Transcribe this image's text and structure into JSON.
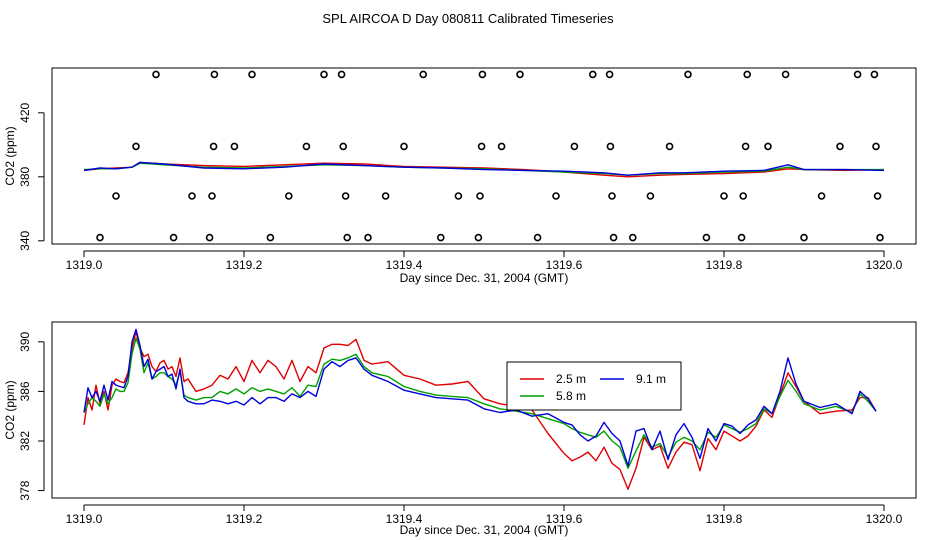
{
  "title": "SPL AIRCOA D  Day 080811  Calibrated Timeseries",
  "chart_data": [
    {
      "type": "line",
      "title": "",
      "xlabel": "Day since Dec. 31, 2004 (GMT)",
      "ylabel": "CO2 (ppm)",
      "xlim": [
        1319.0,
        1320.0
      ],
      "ylim": [
        338,
        448
      ],
      "xticks": [
        1319.0,
        1319.2,
        1319.4,
        1319.6,
        1319.8,
        1320.0
      ],
      "xtick_labels": [
        "1319.0",
        "1319.2",
        "1319.4",
        "1319.6",
        "1319.8",
        "1320.0"
      ],
      "yticks": [
        340,
        380,
        420
      ],
      "ytick_labels": [
        "340",
        "380",
        "420"
      ],
      "series": [
        {
          "name": "2.5 m",
          "color": "#e00000",
          "x": [
            1319.0,
            1319.02,
            1319.04,
            1319.06,
            1319.07,
            1319.1,
            1319.15,
            1319.2,
            1319.25,
            1319.3,
            1319.35,
            1319.4,
            1319.45,
            1319.5,
            1319.55,
            1319.6,
            1319.65,
            1319.68,
            1319.72,
            1319.75,
            1319.8,
            1319.85,
            1319.88,
            1319.9,
            1319.95,
            1320.0
          ],
          "y": [
            384,
            385,
            385.5,
            386,
            389,
            388,
            387,
            386.5,
            387.5,
            388.5,
            388,
            386.5,
            386,
            385.5,
            384.5,
            383,
            381,
            380,
            381,
            381.5,
            382,
            383,
            385,
            384.5,
            384,
            384.5
          ]
        },
        {
          "name": "5.8 m",
          "color": "#00a000",
          "x": [
            1319.0,
            1319.02,
            1319.04,
            1319.06,
            1319.07,
            1319.1,
            1319.15,
            1319.2,
            1319.25,
            1319.3,
            1319.35,
            1319.4,
            1319.45,
            1319.5,
            1319.55,
            1319.6,
            1319.65,
            1319.68,
            1319.72,
            1319.75,
            1319.8,
            1319.85,
            1319.88,
            1319.9,
            1319.95,
            1320.0
          ],
          "y": [
            384.5,
            385,
            385,
            386,
            388.5,
            387.5,
            386,
            385.5,
            386.5,
            387.5,
            387,
            386,
            385.5,
            385,
            384,
            383,
            382,
            381,
            382,
            382,
            383,
            383.5,
            386,
            384.5,
            384.5,
            384.5
          ]
        },
        {
          "name": "9.1 m",
          "color": "#0000dd",
          "x": [
            1319.0,
            1319.02,
            1319.04,
            1319.06,
            1319.07,
            1319.1,
            1319.15,
            1319.2,
            1319.25,
            1319.3,
            1319.35,
            1319.4,
            1319.45,
            1319.5,
            1319.55,
            1319.6,
            1319.65,
            1319.68,
            1319.72,
            1319.75,
            1319.8,
            1319.85,
            1319.88,
            1319.9,
            1319.95,
            1320.0
          ],
          "y": [
            384,
            385.5,
            385,
            386,
            389,
            388,
            385.5,
            385,
            386,
            388,
            387,
            386,
            385.5,
            384.5,
            384,
            383.5,
            382.5,
            381,
            382.5,
            382.5,
            383.5,
            384,
            387.5,
            384.5,
            384.5,
            384
          ]
        }
      ],
      "markers": [
        {
          "label": "o",
          "x": [
            1319.02,
            1319.04,
            1319.065,
            1319.09,
            1319.112,
            1319.135,
            1319.157,
            1319.16,
            1319.162,
            1319.163,
            1319.188,
            1319.21,
            1319.233,
            1319.256,
            1319.278,
            1319.3,
            1319.322,
            1319.324,
            1319.327,
            1319.329,
            1319.355,
            1319.377,
            1319.4,
            1319.424,
            1319.446,
            1319.468,
            1319.493,
            1319.495,
            1319.497,
            1319.498,
            1319.522,
            1319.545,
            1319.567,
            1319.59,
            1319.613,
            1319.636,
            1319.657,
            1319.658,
            1319.66,
            1319.662,
            1319.686,
            1319.708,
            1319.732,
            1319.755,
            1319.778,
            1319.8,
            1319.822,
            1319.824,
            1319.827,
            1319.829,
            1319.855,
            1319.877,
            1319.9,
            1319.922,
            1319.945,
            1319.967,
            1319.988,
            1319.99,
            1319.992,
            1319.995
          ],
          "y": [
            342,
            368,
            399,
            444,
            342,
            368,
            342,
            368,
            399,
            444,
            399,
            444,
            342,
            368,
            399,
            444,
            444,
            399,
            368,
            342,
            342,
            368,
            399,
            444,
            342,
            368,
            342,
            368,
            399,
            444,
            399,
            444,
            342,
            368,
            399,
            444,
            444,
            399,
            368,
            342,
            342,
            368,
            399,
            444,
            342,
            368,
            342,
            368,
            399,
            444,
            399,
            444,
            342,
            368,
            399,
            444,
            444,
            399,
            368,
            342
          ]
        }
      ]
    },
    {
      "type": "line",
      "title": "",
      "xlabel": "Day since Dec. 31, 2004 (GMT)",
      "ylabel": "CO2 (ppm)",
      "xlim": [
        1319.0,
        1320.0
      ],
      "ylim": [
        377.4,
        391.6
      ],
      "xticks": [
        1319.0,
        1319.2,
        1319.4,
        1319.6,
        1319.8,
        1320.0
      ],
      "xtick_labels": [
        "1319.0",
        "1319.2",
        "1319.4",
        "1319.6",
        "1319.8",
        "1320.0"
      ],
      "yticks": [
        378,
        382,
        386,
        390
      ],
      "ytick_labels": [
        "378",
        "382",
        "386",
        "390"
      ],
      "legend": {
        "position": "center-right",
        "entries": [
          {
            "name": "2.5 m",
            "color": "#e00000"
          },
          {
            "name": "9.1 m",
            "color": "#0000dd"
          },
          {
            "name": "5.8 m",
            "color": "#00a000"
          }
        ]
      },
      "series": [
        {
          "name": "2.5 m",
          "color": "#e00000",
          "x": [
            1319.0,
            1319.005,
            1319.01,
            1319.015,
            1319.02,
            1319.025,
            1319.03,
            1319.035,
            1319.04,
            1319.045,
            1319.05,
            1319.055,
            1319.06,
            1319.065,
            1319.07,
            1319.075,
            1319.08,
            1319.085,
            1319.09,
            1319.095,
            1319.1,
            1319.105,
            1319.11,
            1319.115,
            1319.12,
            1319.125,
            1319.13,
            1319.14,
            1319.15,
            1319.16,
            1319.17,
            1319.18,
            1319.19,
            1319.2,
            1319.21,
            1319.22,
            1319.23,
            1319.24,
            1319.25,
            1319.26,
            1319.27,
            1319.28,
            1319.29,
            1319.3,
            1319.31,
            1319.32,
            1319.33,
            1319.34,
            1319.35,
            1319.36,
            1319.38,
            1319.4,
            1319.42,
            1319.44,
            1319.46,
            1319.48,
            1319.5,
            1319.52,
            1319.54,
            1319.56,
            1319.58,
            1319.6,
            1319.61,
            1319.62,
            1319.63,
            1319.64,
            1319.65,
            1319.66,
            1319.67,
            1319.68,
            1319.69,
            1319.7,
            1319.71,
            1319.72,
            1319.73,
            1319.74,
            1319.75,
            1319.76,
            1319.77,
            1319.78,
            1319.79,
            1319.8,
            1319.81,
            1319.82,
            1319.83,
            1319.84,
            1319.85,
            1319.86,
            1319.87,
            1319.88,
            1319.89,
            1319.9,
            1319.92,
            1319.94,
            1319.96,
            1319.97,
            1319.98,
            1319.99
          ],
          "y": [
            383.3,
            385.5,
            384.5,
            386.5,
            385.0,
            386.0,
            384.5,
            386.5,
            387.0,
            386.8,
            386.7,
            387.5,
            389.5,
            390.8,
            389.5,
            388.8,
            389.0,
            388.0,
            387.6,
            388.3,
            388.5,
            387.8,
            388.0,
            387.2,
            388.7,
            386.8,
            387.0,
            386.0,
            386.2,
            386.5,
            387.3,
            387.0,
            388.0,
            386.8,
            388.5,
            387.5,
            388.5,
            388.0,
            387.0,
            388.5,
            386.8,
            388.0,
            387.5,
            389.5,
            389.8,
            389.8,
            389.7,
            390.2,
            388.5,
            388.2,
            388.4,
            387.3,
            387.0,
            386.5,
            386.6,
            386.8,
            385.4,
            385.0,
            384.8,
            384.5,
            382.6,
            381.0,
            380.4,
            380.7,
            381.1,
            380.4,
            381.5,
            380.2,
            379.7,
            378.1,
            379.8,
            382.3,
            381.3,
            381.6,
            379.8,
            381.1,
            381.9,
            381.7,
            379.6,
            382.2,
            381.3,
            382.8,
            382.4,
            382.0,
            382.4,
            383.2,
            384.5,
            383.9,
            385.7,
            387.5,
            386.4,
            385.2,
            384.2,
            384.4,
            384.5,
            385.5,
            385.5,
            384.4
          ]
        },
        {
          "name": "5.8 m",
          "color": "#00a000",
          "x": [
            1319.0,
            1319.005,
            1319.01,
            1319.015,
            1319.02,
            1319.025,
            1319.03,
            1319.035,
            1319.04,
            1319.045,
            1319.05,
            1319.055,
            1319.06,
            1319.065,
            1319.07,
            1319.075,
            1319.08,
            1319.085,
            1319.09,
            1319.095,
            1319.1,
            1319.105,
            1319.11,
            1319.115,
            1319.12,
            1319.125,
            1319.13,
            1319.14,
            1319.15,
            1319.16,
            1319.17,
            1319.18,
            1319.19,
            1319.2,
            1319.21,
            1319.22,
            1319.23,
            1319.24,
            1319.25,
            1319.26,
            1319.27,
            1319.28,
            1319.29,
            1319.3,
            1319.31,
            1319.32,
            1319.33,
            1319.34,
            1319.35,
            1319.36,
            1319.38,
            1319.4,
            1319.42,
            1319.44,
            1319.46,
            1319.48,
            1319.5,
            1319.52,
            1319.54,
            1319.56,
            1319.58,
            1319.6,
            1319.61,
            1319.62,
            1319.63,
            1319.64,
            1319.65,
            1319.66,
            1319.67,
            1319.68,
            1319.69,
            1319.7,
            1319.71,
            1319.72,
            1319.73,
            1319.74,
            1319.75,
            1319.76,
            1319.77,
            1319.78,
            1319.79,
            1319.8,
            1319.81,
            1319.82,
            1319.83,
            1319.84,
            1319.85,
            1319.86,
            1319.87,
            1319.88,
            1319.89,
            1319.9,
            1319.92,
            1319.94,
            1319.96,
            1319.97,
            1319.98,
            1319.99
          ],
          "y": [
            384.3,
            385.0,
            385.5,
            385.2,
            384.8,
            385.8,
            385.0,
            385.5,
            386.2,
            386.0,
            386.0,
            386.7,
            389.0,
            390.3,
            389.4,
            387.5,
            388.3,
            387.0,
            387.2,
            387.5,
            387.5,
            387.2,
            387.0,
            386.5,
            387.6,
            385.7,
            385.5,
            385.3,
            385.5,
            385.5,
            386.0,
            385.8,
            386.2,
            385.8,
            386.3,
            386.0,
            386.2,
            386.0,
            385.8,
            386.3,
            385.6,
            386.5,
            386.4,
            388.2,
            388.6,
            388.5,
            388.7,
            389.0,
            388.0,
            387.5,
            387.2,
            386.4,
            386.0,
            385.7,
            385.6,
            385.5,
            385.0,
            384.6,
            384.4,
            384.2,
            383.8,
            383.4,
            383.0,
            382.7,
            382.5,
            382.3,
            382.8,
            382.0,
            381.5,
            379.8,
            381.2,
            382.5,
            381.5,
            381.8,
            380.7,
            381.9,
            382.3,
            382.0,
            381.3,
            382.7,
            382.3,
            383.3,
            383.0,
            382.7,
            383.0,
            383.4,
            384.6,
            384.2,
            385.6,
            386.9,
            386.0,
            385.0,
            384.5,
            384.8,
            384.3,
            385.8,
            385.2,
            384.4
          ]
        },
        {
          "name": "9.1 m",
          "color": "#0000dd",
          "x": [
            1319.0,
            1319.005,
            1319.01,
            1319.015,
            1319.02,
            1319.025,
            1319.03,
            1319.035,
            1319.04,
            1319.045,
            1319.05,
            1319.055,
            1319.06,
            1319.065,
            1319.07,
            1319.075,
            1319.08,
            1319.085,
            1319.09,
            1319.095,
            1319.1,
            1319.105,
            1319.11,
            1319.115,
            1319.12,
            1319.125,
            1319.13,
            1319.14,
            1319.15,
            1319.16,
            1319.17,
            1319.18,
            1319.19,
            1319.2,
            1319.21,
            1319.22,
            1319.23,
            1319.24,
            1319.25,
            1319.26,
            1319.27,
            1319.28,
            1319.29,
            1319.3,
            1319.31,
            1319.32,
            1319.33,
            1319.34,
            1319.35,
            1319.36,
            1319.38,
            1319.4,
            1319.42,
            1319.44,
            1319.46,
            1319.48,
            1319.5,
            1319.52,
            1319.54,
            1319.56,
            1319.58,
            1319.6,
            1319.61,
            1319.62,
            1319.63,
            1319.64,
            1319.65,
            1319.66,
            1319.67,
            1319.68,
            1319.69,
            1319.7,
            1319.71,
            1319.72,
            1319.73,
            1319.74,
            1319.75,
            1319.76,
            1319.77,
            1319.78,
            1319.79,
            1319.8,
            1319.81,
            1319.82,
            1319.83,
            1319.84,
            1319.85,
            1319.86,
            1319.87,
            1319.88,
            1319.89,
            1319.9,
            1319.92,
            1319.94,
            1319.96,
            1319.97,
            1319.98,
            1319.99
          ],
          "y": [
            384.3,
            386.3,
            385.5,
            386.0,
            385.2,
            386.5,
            385.3,
            386.8,
            386.5,
            386.4,
            386.3,
            387.2,
            390.0,
            391.0,
            389.7,
            388.0,
            388.6,
            387.0,
            387.6,
            387.8,
            388.0,
            387.2,
            387.4,
            386.2,
            387.8,
            385.5,
            385.2,
            385.0,
            385.0,
            385.3,
            385.2,
            385.0,
            385.2,
            384.9,
            385.5,
            385.0,
            385.5,
            385.5,
            385.2,
            385.8,
            385.5,
            386.0,
            385.6,
            387.8,
            388.4,
            388.0,
            388.5,
            388.7,
            387.8,
            387.3,
            386.8,
            386.1,
            385.8,
            385.5,
            385.4,
            385.3,
            384.6,
            384.3,
            384.5,
            384.0,
            384.2,
            383.5,
            383.3,
            382.5,
            382.0,
            382.4,
            383.5,
            382.6,
            382.0,
            380.0,
            382.8,
            383.0,
            381.3,
            382.8,
            380.5,
            382.5,
            383.4,
            382.3,
            380.6,
            383.0,
            382.0,
            383.4,
            383.2,
            382.6,
            383.3,
            383.7,
            384.8,
            384.2,
            386.0,
            388.7,
            386.6,
            385.2,
            384.7,
            385.0,
            384.2,
            386.0,
            385.4,
            384.4
          ]
        }
      ]
    }
  ]
}
